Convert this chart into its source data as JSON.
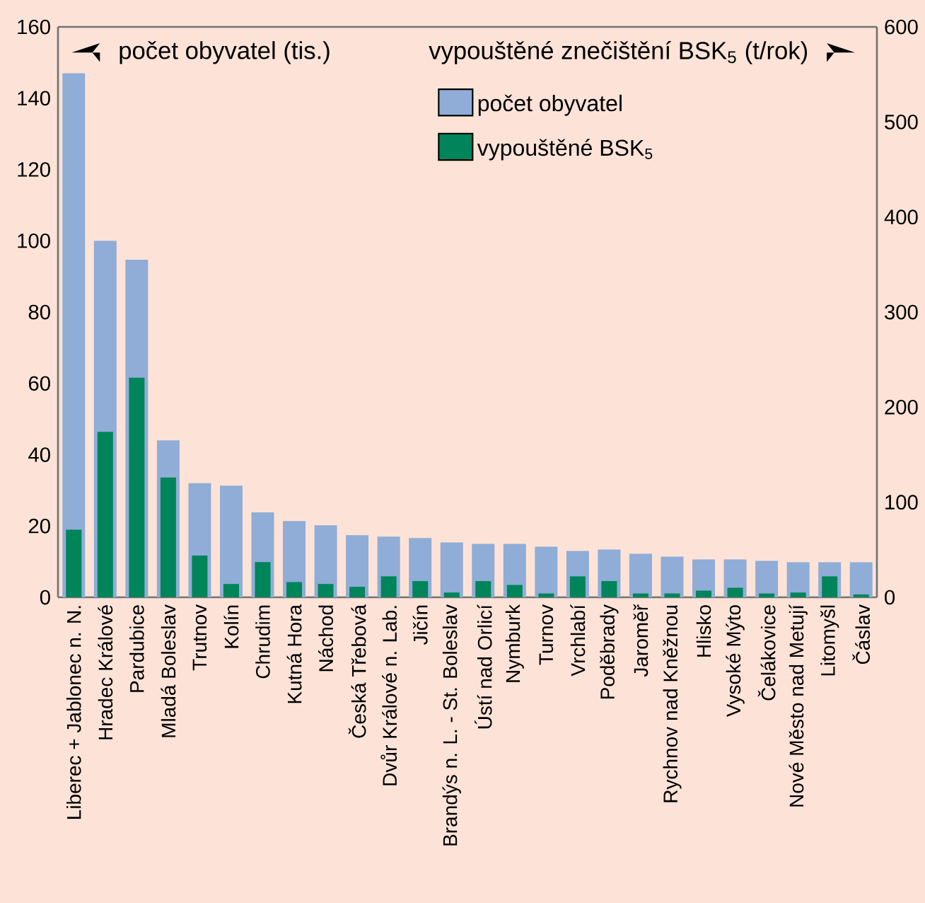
{
  "chart_data": {
    "type": "bar",
    "categories": [
      "Liberec + Jablonec n. N.",
      "Hradec Králové",
      "Pardubice",
      "Mladá Boleslav",
      "Trutnov",
      "Kolín",
      "Chrudim",
      "Kutná Hora",
      "Náchod",
      "Česká Třebová",
      "Dvůr Králové n. Lab.",
      "Jičín",
      "Brandýs n. L. - St. Boleslav",
      "Ústí nad Orlicí",
      "Nymburk",
      "Turnov",
      "Vrchlabí",
      "Poděbrady",
      "Jaroměř",
      "Rychnov nad Kněžnou",
      "Hlisko",
      "Vysoké Mýto",
      "Čelákovice",
      "Nové Město nad Metují",
      "Litomyšl",
      "Čáslav"
    ],
    "series": [
      {
        "name": "počet obyvatel",
        "color": "#8fadd6",
        "axis": "y",
        "values": [
          147,
          100,
          94.7,
          44,
          32,
          31.3,
          23.8,
          21.4,
          20.2,
          17.4,
          17,
          16.6,
          15.4,
          15,
          15,
          14.2,
          13,
          13.4,
          12.2,
          11.4,
          10.6,
          10.6,
          10.2,
          9.8,
          9.8,
          9.8
        ]
      },
      {
        "name": "vypouštěné BSK$_{5}$",
        "color": "#00845a",
        "axis": "y2",
        "values": [
          71,
          174,
          231,
          126,
          44,
          14,
          37,
          16,
          14,
          11,
          22,
          17,
          5,
          17,
          13,
          4,
          22,
          17,
          4,
          4,
          7,
          10,
          4,
          5,
          22,
          3
        ]
      }
    ],
    "ylabel": "počet obyvatel (tis.)",
    "y2label": "vypouštěné znečištění BSK$_{5}$ (t/rok)",
    "ylim": [
      0,
      160
    ],
    "yticks": [
      0,
      20,
      40,
      60,
      80,
      100,
      120,
      140,
      160
    ],
    "y2lim": [
      0,
      600
    ],
    "y2ticks": [
      0,
      100,
      200,
      300,
      400,
      500,
      600
    ],
    "legend": "top right"
  }
}
